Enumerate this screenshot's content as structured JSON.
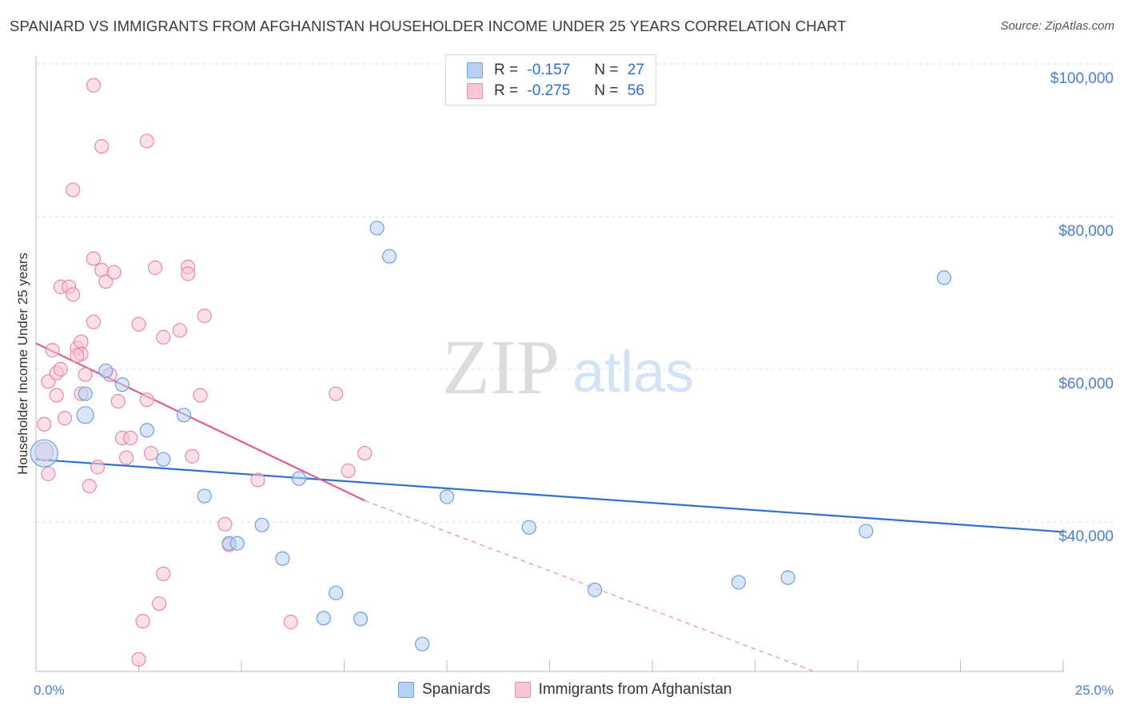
{
  "title": "SPANIARD VS IMMIGRANTS FROM AFGHANISTAN HOUSEHOLDER INCOME UNDER 25 YEARS CORRELATION CHART",
  "source": "Source: ZipAtlas.com",
  "watermark": {
    "zip": "ZIP",
    "atlas": "atlas"
  },
  "legend": {
    "rows": [
      {
        "r_label": "R =",
        "r_value": "-0.157",
        "n_label": "N =",
        "n_value": "27"
      },
      {
        "r_label": "R =",
        "r_value": "-0.275",
        "n_label": "N =",
        "n_value": "56"
      }
    ]
  },
  "bottom_legend": {
    "series1": "Spaniards",
    "series2": "Immigrants from Afghanistan"
  },
  "colors": {
    "blue_fill": "#b8d1f3",
    "blue_stroke": "#6f9ee0",
    "blue_line": "#2f6fd0",
    "pink_fill": "#f8c6d6",
    "pink_stroke": "#e889aa",
    "pink_line": "#e0608d",
    "tick_text": "#4a7fc9",
    "grid": "#dddddd"
  },
  "chart_data": {
    "type": "scatter",
    "title": "SPANIARD VS IMMIGRANTS FROM AFGHANISTAN HOUSEHOLDER INCOME UNDER 25 YEARS CORRELATION CHART",
    "xlabel": "",
    "ylabel": "Householder Income Under 25 years",
    "xlim": [
      0,
      25
    ],
    "ylim": [
      20000,
      102000
    ],
    "x_tick_labels": [
      "0.0%",
      "25.0%"
    ],
    "y_ticks": [
      40000,
      60000,
      80000,
      100000
    ],
    "y_tick_labels": [
      "$40,000",
      "$60,000",
      "$80,000",
      "$100,000"
    ],
    "grid": true,
    "legend_position": "top-center",
    "series": [
      {
        "name": "Spaniards",
        "points": [
          [
            0.2,
            49000
          ],
          [
            1.2,
            54000
          ],
          [
            1.2,
            56800
          ],
          [
            1.7,
            59800
          ],
          [
            2.1,
            58000
          ],
          [
            2.7,
            52000
          ],
          [
            3.1,
            48200
          ],
          [
            3.6,
            54000
          ],
          [
            4.1,
            43400
          ],
          [
            4.7,
            37200
          ],
          [
            4.9,
            37200
          ],
          [
            5.5,
            39600
          ],
          [
            6.0,
            35200
          ],
          [
            6.4,
            45700
          ],
          [
            7.3,
            30700
          ],
          [
            7.0,
            27400
          ],
          [
            7.9,
            27300
          ],
          [
            8.3,
            78500
          ],
          [
            8.6,
            74800
          ],
          [
            9.4,
            24000
          ],
          [
            10.0,
            43300
          ],
          [
            12.0,
            39300
          ],
          [
            13.6,
            31100
          ],
          [
            17.1,
            32100
          ],
          [
            18.3,
            32700
          ],
          [
            20.2,
            38800
          ],
          [
            22.1,
            72000
          ]
        ],
        "sizes": [
          3,
          1,
          1,
          1,
          1,
          1,
          1,
          1,
          1,
          1,
          1,
          1,
          1,
          1,
          1,
          1,
          1,
          1,
          1,
          1,
          1,
          1,
          1,
          1,
          1,
          1,
          1
        ],
        "trend": {
          "x": [
            0,
            25
          ],
          "y": [
            48200,
            38700
          ]
        }
      },
      {
        "name": "Immigrants from Afghanistan",
        "points": [
          [
            0.2,
            52800
          ],
          [
            0.2,
            49200
          ],
          [
            0.3,
            58400
          ],
          [
            0.3,
            46300
          ],
          [
            0.4,
            62500
          ],
          [
            0.5,
            56600
          ],
          [
            0.5,
            59500
          ],
          [
            0.6,
            70800
          ],
          [
            0.6,
            60000
          ],
          [
            0.7,
            53600
          ],
          [
            0.8,
            70800
          ],
          [
            0.9,
            83500
          ],
          [
            0.9,
            69800
          ],
          [
            1.0,
            62800
          ],
          [
            1.1,
            56800
          ],
          [
            1.1,
            63600
          ],
          [
            1.1,
            62000
          ],
          [
            1.2,
            59300
          ],
          [
            1.3,
            44700
          ],
          [
            1.4,
            97200
          ],
          [
            1.4,
            66200
          ],
          [
            1.4,
            74500
          ],
          [
            1.5,
            47200
          ],
          [
            1.6,
            73000
          ],
          [
            1.6,
            89200
          ],
          [
            1.7,
            71500
          ],
          [
            1.8,
            59300
          ],
          [
            1.9,
            72700
          ],
          [
            2.0,
            55800
          ],
          [
            2.1,
            51000
          ],
          [
            2.2,
            48400
          ],
          [
            2.3,
            51000
          ],
          [
            2.5,
            65900
          ],
          [
            2.5,
            22000
          ],
          [
            2.6,
            27000
          ],
          [
            2.7,
            56000
          ],
          [
            2.7,
            89900
          ],
          [
            2.8,
            49000
          ],
          [
            2.9,
            73300
          ],
          [
            3.0,
            29300
          ],
          [
            3.1,
            64200
          ],
          [
            3.1,
            33200
          ],
          [
            3.5,
            65100
          ],
          [
            3.7,
            73400
          ],
          [
            3.7,
            72500
          ],
          [
            3.8,
            48600
          ],
          [
            4.0,
            56600
          ],
          [
            4.1,
            67000
          ],
          [
            4.6,
            39700
          ],
          [
            4.7,
            37000
          ],
          [
            5.4,
            45500
          ],
          [
            6.2,
            26900
          ],
          [
            7.3,
            56800
          ],
          [
            7.6,
            46700
          ],
          [
            8.0,
            49000
          ],
          [
            1.0,
            61800
          ]
        ],
        "sizes": [
          1,
          2,
          1,
          1,
          1,
          1,
          1,
          1,
          1,
          1,
          1,
          1,
          1,
          1,
          1,
          1,
          1,
          1,
          1,
          1,
          1,
          1,
          1,
          1,
          1,
          1,
          1,
          1,
          1,
          1,
          1,
          1,
          1,
          1,
          1,
          1,
          1,
          1,
          1,
          1,
          1,
          1,
          1,
          1,
          1,
          1,
          1,
          1,
          1,
          1,
          1,
          1,
          1,
          1,
          1,
          1
        ],
        "trend": {
          "x": [
            0,
            8.0
          ],
          "y": [
            63400,
            42800
          ]
        },
        "trend_extension": {
          "x": [
            8.0,
            25
          ],
          "y": [
            42800,
            8000
          ]
        }
      }
    ]
  }
}
